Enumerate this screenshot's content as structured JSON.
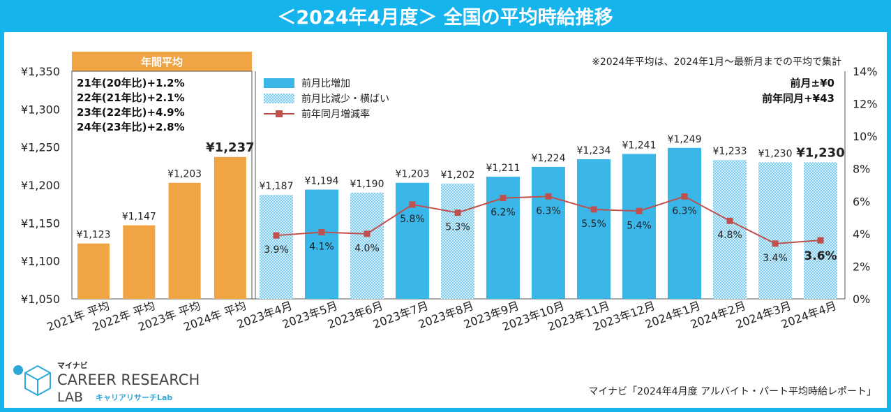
{
  "header": {
    "title": "＜2024年4月度＞ 全国の平均時給推移"
  },
  "note": "※2024年平均は、2024年1月～最新月までの平均で集計",
  "annual_label": "年間平均",
  "annual_notes": [
    "21年(20年比)+1.2%",
    "22年(21年比)+2.1%",
    "23年(22年比)+4.9%",
    "24年(23年比)+2.8%"
  ],
  "summary": {
    "mom": "前月±¥0",
    "yoy": "前年同月+¥43"
  },
  "legend": {
    "increase": "前月比増加",
    "decrease": "前月比減少・横ばい",
    "yoy_rate": "前年同月増減率"
  },
  "colors": {
    "annual": "#f0a443",
    "increase": "#3bb6e8",
    "rate_line": "#c0504d",
    "frame": "#16b4ec"
  },
  "logo": {
    "brand": "マイナビ",
    "name_line1": "CAREER RESEARCH",
    "name_line2": "LAB",
    "sub": "キャリアリサーチLab"
  },
  "source": "マイナビ「2024年4月度 アルバイト・パート平均時給レポート」",
  "chart_data": {
    "type": "bar",
    "categories": [
      "2021年 平均",
      "2022年 平均",
      "2023年 平均",
      "2024年 平均",
      "2023年4月",
      "2023年5月",
      "2023年6月",
      "2023年7月",
      "2023年8月",
      "2023年9月",
      "2023年10月",
      "2023年11月",
      "2023年12月",
      "2024年1月",
      "2024年2月",
      "2024年3月",
      "2024年4月"
    ],
    "values": [
      1123,
      1147,
      1203,
      1237,
      1187,
      1194,
      1190,
      1203,
      1202,
      1211,
      1224,
      1234,
      1241,
      1249,
      1233,
      1230,
      1230
    ],
    "value_labels": [
      "¥1,123",
      "¥1,147",
      "¥1,203",
      "¥1,237",
      "¥1,187",
      "¥1,194",
      "¥1,190",
      "¥1,203",
      "¥1,202",
      "¥1,211",
      "¥1,224",
      "¥1,234",
      "¥1,241",
      "¥1,249",
      "¥1,233",
      "¥1,230",
      "¥1,230"
    ],
    "bar_style": [
      "annual",
      "annual",
      "annual",
      "annual",
      "decrease",
      "increase",
      "decrease",
      "increase",
      "decrease",
      "increase",
      "increase",
      "increase",
      "increase",
      "increase",
      "decrease",
      "decrease",
      "decrease"
    ],
    "yoy_rate": [
      null,
      null,
      null,
      null,
      3.9,
      4.1,
      4.0,
      5.8,
      5.3,
      6.2,
      6.3,
      5.5,
      5.4,
      6.3,
      4.8,
      3.4,
      3.6
    ],
    "yoy_labels": [
      null,
      null,
      null,
      null,
      "3.9%",
      "4.1%",
      "4.0%",
      "5.8%",
      "5.3%",
      "6.2%",
      "6.3%",
      "5.5%",
      "5.4%",
      "6.3%",
      "4.8%",
      "3.4%",
      "3.6%"
    ],
    "ylim": [
      1050,
      1350
    ],
    "y_ticks": [
      1050,
      1100,
      1150,
      1200,
      1250,
      1300,
      1350
    ],
    "y_tick_labels": [
      "¥1,050",
      "¥1,100",
      "¥1,150",
      "¥1,200",
      "¥1,250",
      "¥1,300",
      "¥1,350"
    ],
    "y2lim": [
      0,
      14
    ],
    "y2_ticks": [
      0,
      2,
      4,
      6,
      8,
      10,
      12,
      14
    ],
    "y2_tick_labels": [
      "0%",
      "2%",
      "4%",
      "6%",
      "8%",
      "10%",
      "12%",
      "14%"
    ]
  }
}
